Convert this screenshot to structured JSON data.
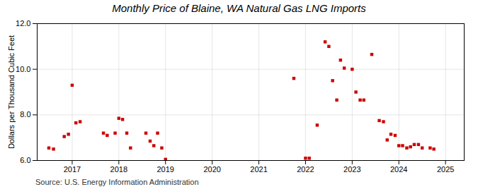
{
  "chart_data": {
    "type": "scatter",
    "title": "Monthly Price of Blaine, WA Natural Gas LNG Imports",
    "y_label": "Dollars per Thousand Cubic Feet",
    "source": "Source: U.S. Energy Information Administration",
    "color": "#cc0000",
    "marker": "square",
    "x": [
      2016.5,
      2016.6,
      2016.83,
      2016.92,
      2017.0,
      2017.08,
      2017.17,
      2017.67,
      2017.75,
      2017.92,
      2018.0,
      2018.08,
      2018.17,
      2018.25,
      2018.58,
      2018.67,
      2018.75,
      2018.83,
      2018.92,
      2019.0,
      2021.75,
      2022.0,
      2022.08,
      2022.25,
      2022.42,
      2022.5,
      2022.58,
      2022.67,
      2022.75,
      2022.83,
      2023.0,
      2023.08,
      2023.17,
      2023.25,
      2023.42,
      2023.58,
      2023.67,
      2023.75,
      2023.83,
      2023.92,
      2024.0,
      2024.08,
      2024.17,
      2024.25,
      2024.33,
      2024.42,
      2024.5,
      2024.67,
      2024.75
    ],
    "values": [
      6.55,
      6.5,
      7.05,
      7.15,
      9.3,
      7.65,
      7.7,
      7.2,
      7.1,
      7.2,
      7.85,
      7.8,
      7.2,
      6.55,
      7.2,
      6.85,
      6.65,
      7.2,
      6.55,
      6.05,
      9.6,
      6.1,
      6.1,
      7.55,
      11.2,
      11.0,
      9.5,
      8.65,
      10.4,
      10.05,
      10.0,
      9.0,
      8.65,
      8.65,
      10.65,
      7.75,
      7.7,
      6.9,
      7.15,
      7.1,
      6.65,
      6.65,
      6.55,
      6.6,
      6.7,
      6.7,
      6.55,
      6.55,
      6.5
    ],
    "xlim": [
      2016.25,
      2025.4
    ],
    "xticks": [
      2017,
      2018,
      2019,
      2020,
      2021,
      2022,
      2023,
      2024,
      2025
    ],
    "ylim": [
      6,
      12
    ],
    "yticks": [
      6,
      8,
      10,
      12
    ],
    "grid": true
  }
}
